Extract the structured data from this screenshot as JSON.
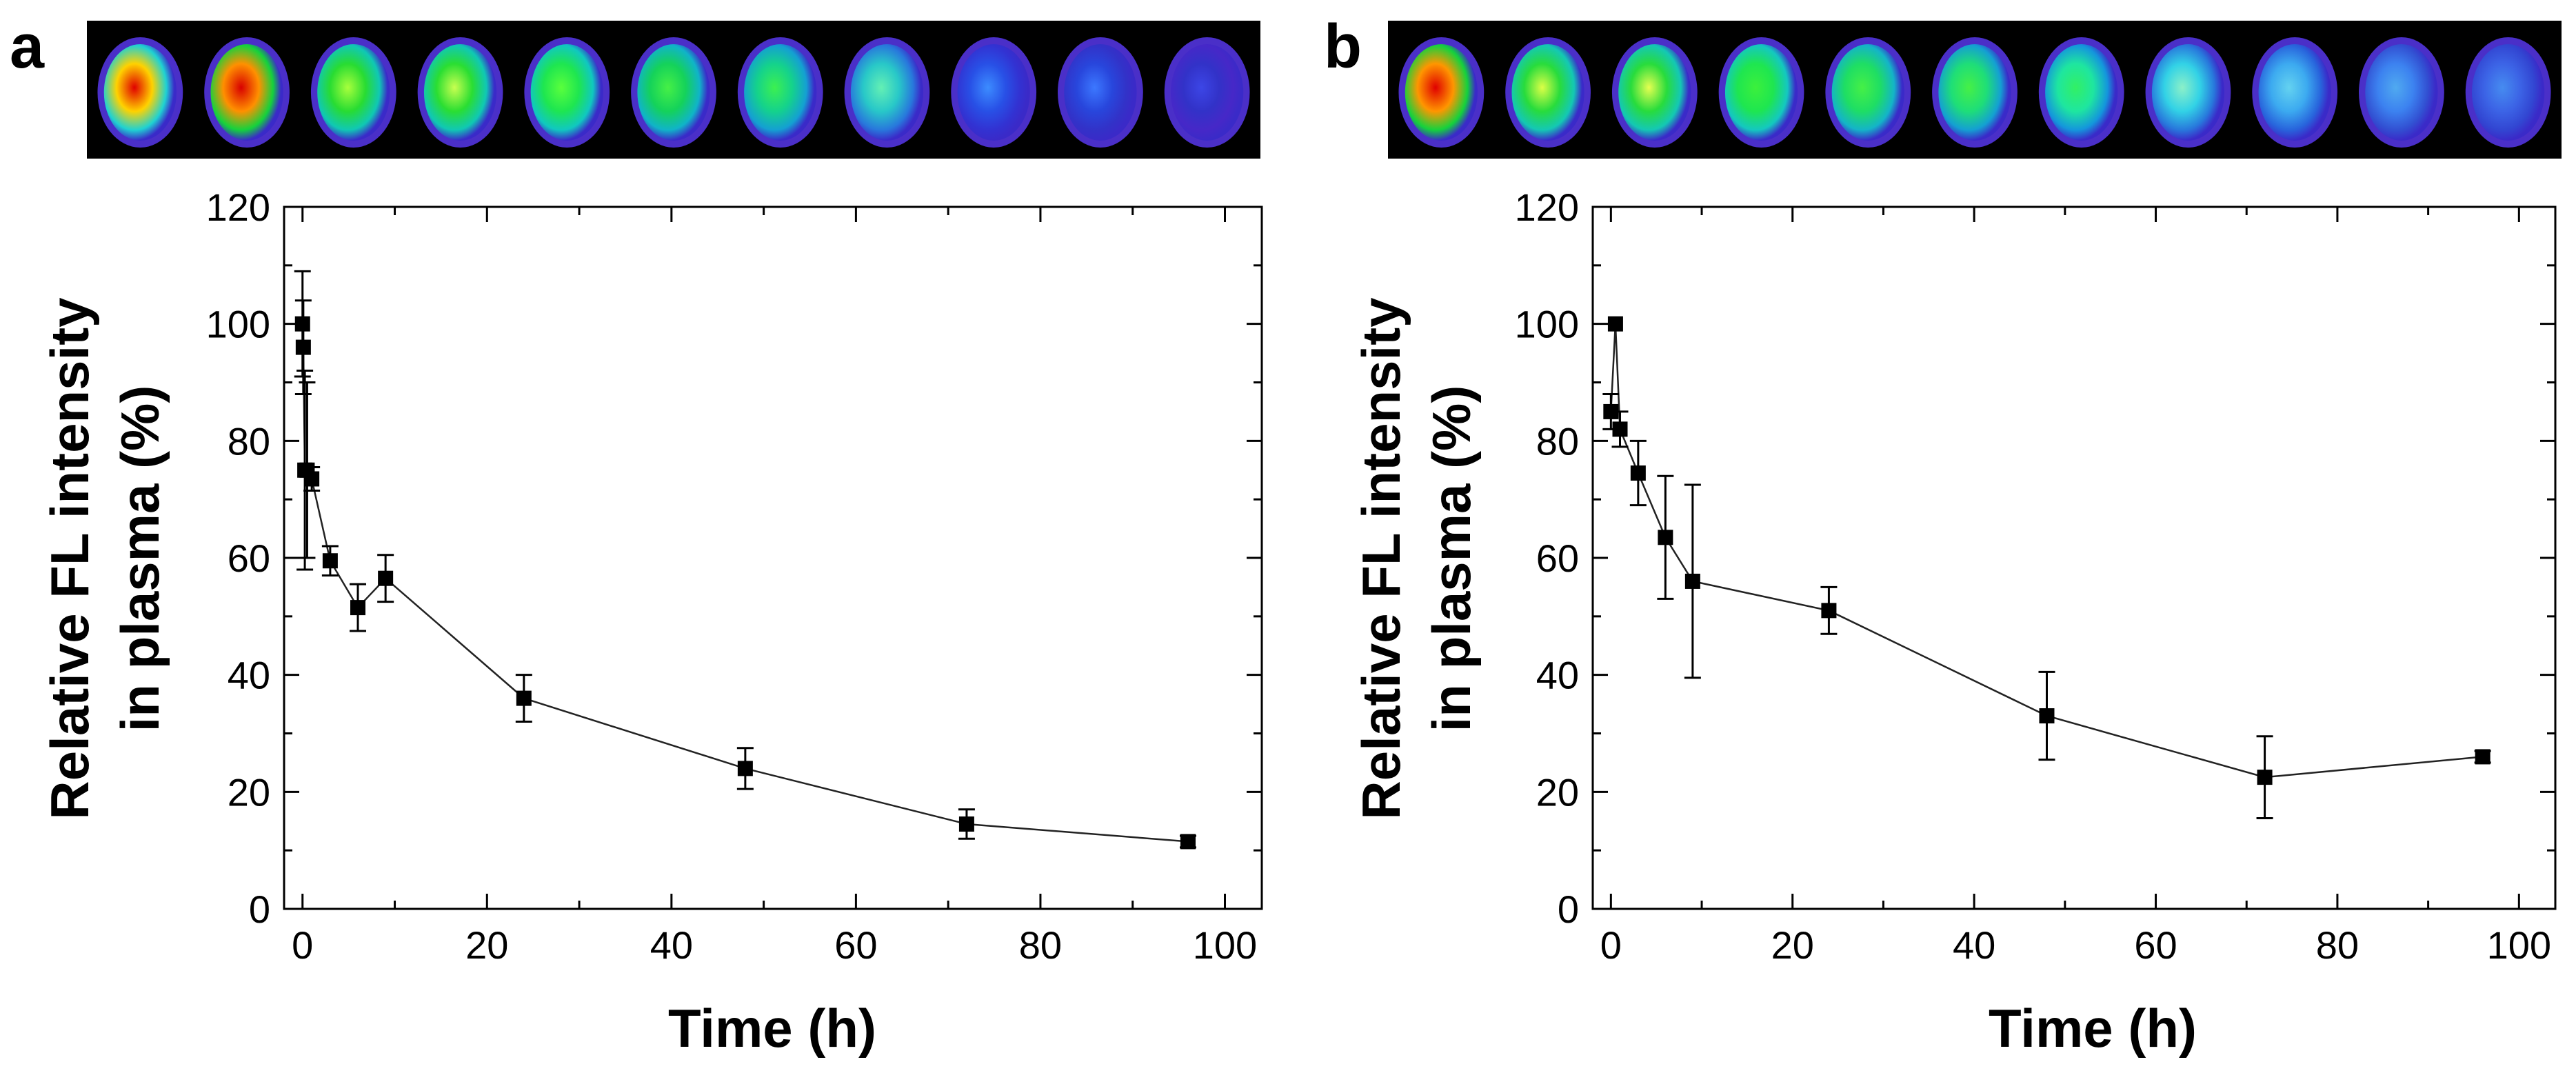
{
  "figure": {
    "panel_a_label": "a",
    "panel_b_label": "b"
  },
  "chart_data": [
    {
      "panel": "a",
      "type": "scatter",
      "title": "",
      "xlabel": "Time (h)",
      "ylabel_line1": "Relative FL intensity",
      "ylabel_line2": "in plasma (%)",
      "xlim": [
        -2,
        104
      ],
      "ylim": [
        0,
        120
      ],
      "xticks": [
        0,
        20,
        40,
        60,
        80,
        100
      ],
      "yticks": [
        0,
        20,
        40,
        60,
        80,
        100,
        120
      ],
      "x": [
        0,
        0.083,
        0.25,
        0.5,
        1,
        3,
        6,
        9,
        24,
        48,
        72,
        96
      ],
      "y": [
        100,
        96,
        75,
        75,
        73.5,
        59.5,
        51.5,
        56.5,
        36,
        24,
        14.5,
        11.5
      ],
      "yerr": [
        9,
        8,
        17,
        15,
        2,
        2.5,
        4,
        4,
        4,
        3.5,
        2.5,
        1
      ],
      "line": "connected",
      "marker": "square",
      "grid": false
    },
    {
      "panel": "b",
      "type": "scatter",
      "title": "",
      "xlabel": "Time (h)",
      "ylabel_line1": "Relative FL intensity",
      "ylabel_line2": "in plasma (%)",
      "xlim": [
        -2,
        104
      ],
      "ylim": [
        0,
        120
      ],
      "xticks": [
        0,
        20,
        40,
        60,
        80,
        100
      ],
      "yticks": [
        0,
        20,
        40,
        60,
        80,
        100,
        120
      ],
      "x": [
        0.5,
        0,
        1,
        3,
        6,
        9,
        24,
        48,
        72,
        96
      ],
      "y": [
        100,
        85,
        82,
        74.5,
        63.5,
        56,
        51,
        33,
        22.5,
        26
      ],
      "yerr": [
        0,
        3,
        3,
        5.5,
        10.5,
        16.5,
        4,
        7.5,
        7,
        1
      ],
      "line": "connected",
      "marker": "square",
      "grid": false
    }
  ],
  "fluorescence_strips": [
    {
      "panel": "a",
      "wells": [
        {
          "core": "#e00000",
          "mid": "#ffd200",
          "ring": "#1fd2d2"
        },
        {
          "core": "#d80000",
          "mid": "#ff9000",
          "ring": "#14d23c"
        },
        {
          "core": "#a8ff3c",
          "mid": "#28dc32",
          "ring": "#10c8b4"
        },
        {
          "core": "#c8ff50",
          "mid": "#2ade32",
          "ring": "#10c8b4"
        },
        {
          "core": "#5aff3c",
          "mid": "#1ee650",
          "ring": "#10c8c0"
        },
        {
          "core": "#46f046",
          "mid": "#14d25a",
          "ring": "#10b4c8"
        },
        {
          "core": "#3cf050",
          "mid": "#14d28c",
          "ring": "#14a0d2"
        },
        {
          "core": "#64f0b4",
          "mid": "#28c8c8",
          "ring": "#2878dc"
        },
        {
          "core": "#3c8cff",
          "mid": "#2850e6",
          "ring": "#3232d2"
        },
        {
          "core": "#3c78ff",
          "mid": "#2846dc",
          "ring": "#3232c8"
        },
        {
          "core": "#3c46e6",
          "mid": "#3232c8",
          "ring": "#4628c8"
        }
      ]
    },
    {
      "panel": "b",
      "wells": [
        {
          "core": "#e00000",
          "mid": "#ff9600",
          "ring": "#14d23c"
        },
        {
          "core": "#dcff46",
          "mid": "#28dc3c",
          "ring": "#14c8b4"
        },
        {
          "core": "#e6ff50",
          "mid": "#28dc3c",
          "ring": "#14c8b4"
        },
        {
          "core": "#3cf03c",
          "mid": "#1ee650",
          "ring": "#14c8c0"
        },
        {
          "core": "#46f046",
          "mid": "#1ede64",
          "ring": "#14b4c8"
        },
        {
          "core": "#46f046",
          "mid": "#1ede78",
          "ring": "#14a0d2"
        },
        {
          "core": "#32f064",
          "mid": "#1ee6a0",
          "ring": "#1496dc"
        },
        {
          "core": "#8cf0c8",
          "mid": "#32d2e6",
          "ring": "#2878dc"
        },
        {
          "core": "#64d2f0",
          "mid": "#3caaf0",
          "ring": "#2864dc"
        },
        {
          "core": "#50aaf0",
          "mid": "#3c82f0",
          "ring": "#3250d2"
        },
        {
          "core": "#468cf0",
          "mid": "#3c64e6",
          "ring": "#3246d2"
        }
      ]
    }
  ]
}
